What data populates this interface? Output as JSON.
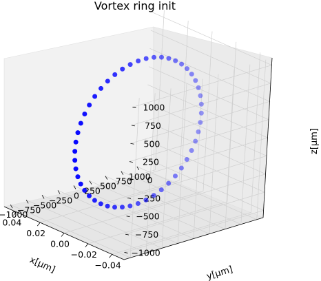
{
  "chart_data": {
    "type": "scatter",
    "dimensions": 3,
    "title": "Vortex ring init",
    "xlabel": "x[μm]",
    "ylabel": "y[μm]",
    "zlabel": "z[μm]",
    "xlim": [
      -0.05,
      0.05
    ],
    "ylim": [
      -1100,
      1100
    ],
    "zlim": [
      -1100,
      1100
    ],
    "x_ticks": [
      "−0.04",
      "−0.02",
      "0.00",
      "0.02",
      "0.04"
    ],
    "y_ticks": [
      "−1000",
      "−750",
      "−500",
      "−250",
      "0",
      "250",
      "500",
      "750",
      "1000"
    ],
    "z_ticks": [
      "−1000",
      "−750",
      "−500",
      "−250",
      "0",
      "250",
      "500",
      "750",
      "1000"
    ],
    "grid": true,
    "point_color": "#0000ff",
    "series": [
      {
        "ring_radius": 1000,
        "x_value": 0,
        "point_count": 50
      }
    ]
  }
}
